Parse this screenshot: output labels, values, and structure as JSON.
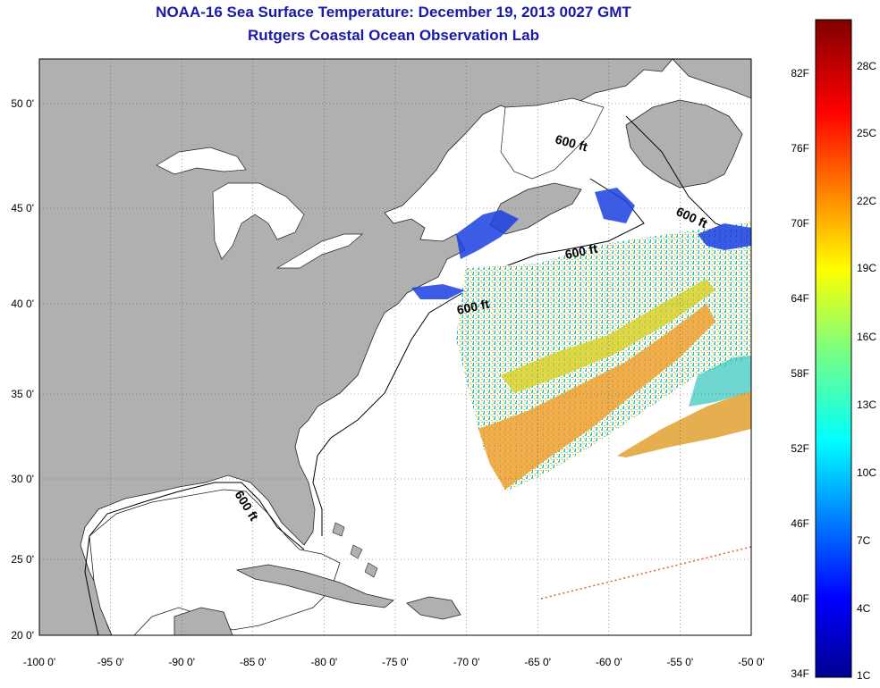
{
  "title": "NOAA-16 Sea Surface Temperature:  December 19, 2013 0027 GMT",
  "subtitle": "Rutgers Coastal Ocean Observation Lab",
  "lon_labels": [
    "-100 0'",
    "-95 0'",
    "-90 0'",
    "-85 0'",
    "-80 0'",
    "-75 0'",
    "-70 0'",
    "-65 0'",
    "-60 0'",
    "-55 0'",
    "-50 0'"
  ],
  "lat_labels": [
    "50 0'",
    "45 0'",
    "40 0'",
    "35 0'",
    "30 0'",
    "25 0'",
    "20 0'"
  ],
  "depth_labels": [
    "600 ft",
    "600 ft",
    "600 ft",
    "600 ft",
    "600 ft"
  ],
  "colorbar": {
    "fahrenheit": [
      "82F",
      "76F",
      "70F",
      "64F",
      "58F",
      "52F",
      "46F",
      "40F",
      "34F"
    ],
    "celsius": [
      "28C",
      "25C",
      "22C",
      "19C",
      "16C",
      "13C",
      "10C",
      "7C",
      "4C",
      "1C"
    ]
  },
  "colors": {
    "land": "#b0b0b0",
    "title": "#1a1aa6",
    "water": "#ffffff",
    "grid": "#555555"
  }
}
